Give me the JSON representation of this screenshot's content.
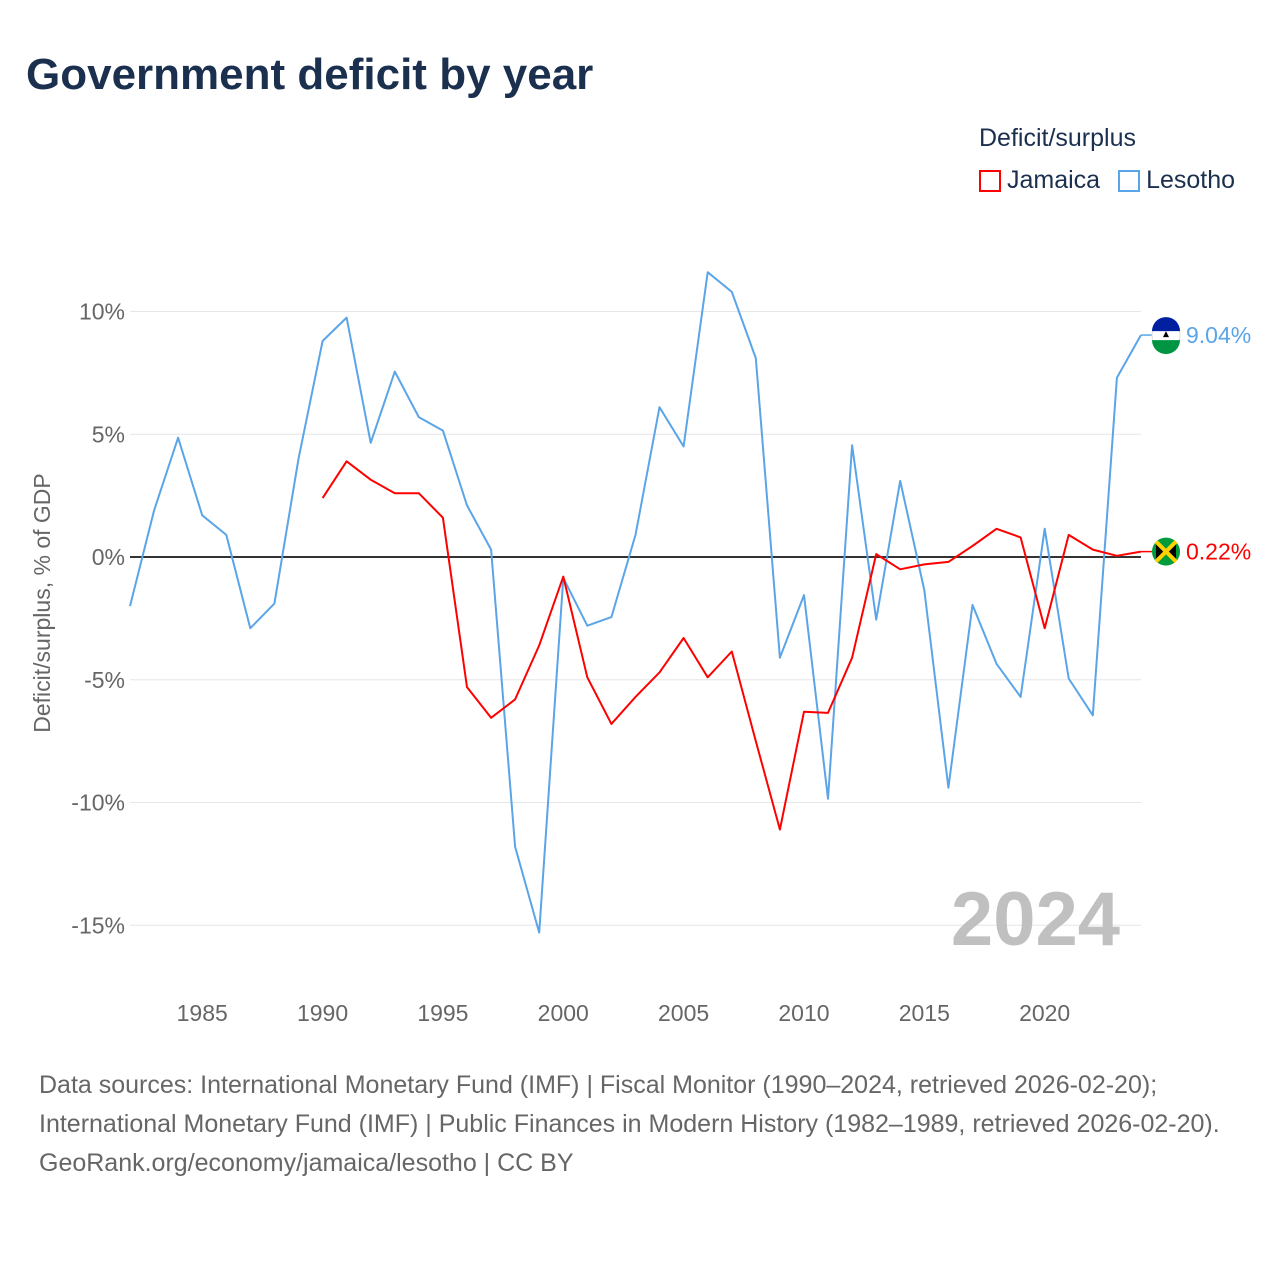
{
  "title": "Government deficit by year",
  "legend": {
    "title": "Deficit/surplus",
    "items": [
      {
        "label": "Jamaica",
        "color": "#ff0000"
      },
      {
        "label": "Lesotho",
        "color": "#5aa5e8"
      }
    ]
  },
  "watermark_year": "2024",
  "footer": {
    "sources": "Data sources: International Monetary Fund (IMF) | Fiscal Monitor (1990–2024, retrieved 2026-02-20); International Monetary Fund (IMF) | Public Finances in Modern History (1982–1989, retrieved 2026-02-20).",
    "credit": "GeoRank.org/economy/jamaica/lesotho | CC BY"
  },
  "chart_data": {
    "type": "line",
    "title": "Government deficit by year",
    "xlabel": "",
    "ylabel": "Deficit/surplus, % of GDP",
    "xlim": [
      1982,
      2024
    ],
    "ylim": [
      -17,
      12
    ],
    "x_ticks": [
      1985,
      1990,
      1995,
      2000,
      2005,
      2010,
      2015,
      2020
    ],
    "y_ticks": [
      {
        "v": 10,
        "label": "10%"
      },
      {
        "v": 5,
        "label": "5%"
      },
      {
        "v": 0,
        "label": "0%"
      },
      {
        "v": -5,
        "label": "-5%"
      },
      {
        "v": -10,
        "label": "-10%"
      },
      {
        "v": -15,
        "label": "-15%"
      }
    ],
    "series": [
      {
        "name": "Lesotho",
        "color": "#5aa5e8",
        "start": 1982,
        "end_label": "9.04%",
        "values": [
          -2.0,
          1.9,
          4.86,
          1.7,
          0.9,
          -2.9,
          -1.9,
          4.0,
          8.8,
          9.75,
          4.65,
          7.55,
          5.7,
          5.15,
          2.1,
          0.3,
          -11.8,
          -15.3,
          -0.85,
          -2.8,
          -2.45,
          0.9,
          6.1,
          4.5,
          11.6,
          10.8,
          8.1,
          -4.1,
          -1.55,
          -9.85,
          4.55,
          -2.55,
          3.1,
          -1.35,
          -9.4,
          -1.95,
          -4.35,
          -5.7,
          1.15,
          -4.95,
          -6.45,
          7.3,
          9.04
        ]
      },
      {
        "name": "Jamaica",
        "color": "#ff0000",
        "start": 1990,
        "end_label": "0.22%",
        "values": [
          2.4,
          3.9,
          3.15,
          2.6,
          2.6,
          1.6,
          -5.3,
          -6.55,
          -5.8,
          -3.6,
          -0.8,
          -4.9,
          -6.8,
          -5.7,
          -4.7,
          -3.3,
          -4.9,
          -3.85,
          -7.5,
          -11.1,
          -6.3,
          -6.35,
          -4.1,
          0.12,
          -0.5,
          -0.3,
          -0.2,
          0.45,
          1.15,
          0.8,
          -2.9,
          0.9,
          0.3,
          0.05,
          0.22
        ]
      }
    ]
  }
}
